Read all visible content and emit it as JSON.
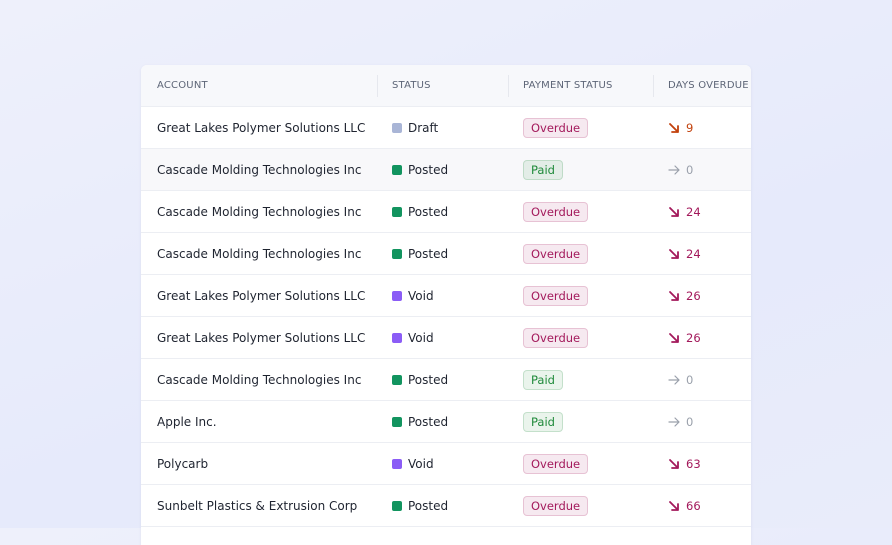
{
  "table": {
    "columns": [
      "ACCOUNT",
      "STATUS",
      "PAYMENT STATUS",
      "DAYS OVERDUE"
    ],
    "rows": [
      {
        "account": "Great Lakes Polymer Solutions LLC",
        "status": "Draft",
        "status_color": "#a9b5d6",
        "payment": "Overdue",
        "payment_color": "#a3195b",
        "days": 9
      },
      {
        "account": "Cascade Molding Technologies Inc",
        "status": "Posted",
        "status_color": "#12945f",
        "payment": "Paid",
        "payment_color": "#1f8a3a",
        "days": 0
      },
      {
        "account": "Cascade Molding Technologies Inc",
        "status": "Posted",
        "status_color": "#12945f",
        "payment": "Overdue",
        "payment_color": "#a3195b",
        "days": 24
      },
      {
        "account": "Cascade Molding Technologies Inc",
        "status": "Posted",
        "status_color": "#12945f",
        "payment": "Overdue",
        "payment_color": "#a3195b",
        "days": 24
      },
      {
        "account": "Great Lakes Polymer Solutions LLC",
        "status": "Void",
        "status_color": "#8b5cf6",
        "payment": "Overdue",
        "payment_color": "#a3195b",
        "days": 26
      },
      {
        "account": "Great Lakes Polymer Solutions LLC",
        "status": "Void",
        "status_color": "#8b5cf6",
        "payment": "Overdue",
        "payment_color": "#a3195b",
        "days": 26
      },
      {
        "account": "Cascade Molding Technologies Inc",
        "status": "Posted",
        "status_color": "#12945f",
        "payment": "Paid",
        "payment_color": "#1f8a3a",
        "days": 0
      },
      {
        "account": "Apple Inc.",
        "status": "Posted",
        "status_color": "#12945f",
        "payment": "Paid",
        "payment_color": "#1f8a3a",
        "days": 0
      },
      {
        "account": "Polycarb",
        "status": "Void",
        "status_color": "#8b5cf6",
        "payment": "Overdue",
        "payment_color": "#a3195b",
        "days": 63
      },
      {
        "account": "Sunbelt Plastics & Extrusion Corp",
        "status": "Posted",
        "status_color": "#12945f",
        "payment": "Overdue",
        "payment_color": "#a3195b",
        "days": 66
      }
    ]
  }
}
